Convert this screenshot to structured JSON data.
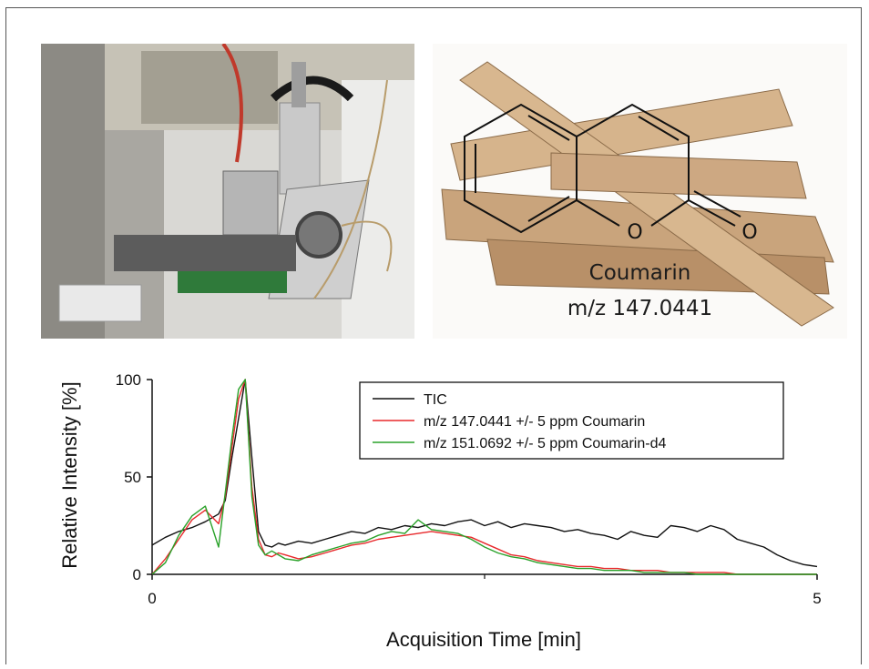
{
  "photos": {
    "left": {
      "icon": "instrument-photo"
    },
    "right": {
      "icon": "cinnamon-sticks-photo",
      "compound_name": "Coumarin",
      "compound_mz": "m/z 147.0441",
      "atom_label": "O"
    }
  },
  "chart_data": {
    "type": "line",
    "xlabel": "Acquisition Time [min]",
    "ylabel": "Relative Intensity [%]",
    "xlim": [
      0,
      5
    ],
    "ylim": [
      0,
      100
    ],
    "x_ticks": [
      "0",
      "5"
    ],
    "y_ticks": [
      "0",
      "50",
      "100"
    ],
    "legend_position": "top-right",
    "legend_box": true,
    "series": [
      {
        "name": "TIC",
        "color": "#111111",
        "x": [
          0.0,
          0.1,
          0.2,
          0.3,
          0.4,
          0.5,
          0.55,
          0.6,
          0.65,
          0.7,
          0.75,
          0.8,
          0.85,
          0.9,
          0.95,
          1.0,
          1.1,
          1.2,
          1.3,
          1.4,
          1.5,
          1.6,
          1.7,
          1.8,
          1.9,
          2.0,
          2.1,
          2.2,
          2.3,
          2.4,
          2.5,
          2.6,
          2.7,
          2.8,
          2.9,
          3.0,
          3.1,
          3.2,
          3.3,
          3.4,
          3.5,
          3.6,
          3.7,
          3.8,
          3.9,
          4.0,
          4.1,
          4.2,
          4.3,
          4.4,
          4.5,
          4.6,
          4.7,
          4.8,
          4.9,
          5.0
        ],
        "y": [
          15,
          19,
          22,
          24,
          27,
          31,
          38,
          60,
          80,
          100,
          60,
          22,
          15,
          14,
          16,
          15,
          17,
          16,
          18,
          20,
          22,
          21,
          24,
          23,
          25,
          24,
          26,
          25,
          27,
          28,
          25,
          27,
          24,
          26,
          25,
          24,
          22,
          23,
          21,
          20,
          18,
          22,
          20,
          19,
          25,
          24,
          22,
          25,
          23,
          18,
          16,
          14,
          10,
          7,
          5,
          4
        ]
      },
      {
        "name": "m/z 147.0441 +/- 5 ppm Coumarin",
        "color": "#e8292c",
        "x": [
          0.0,
          0.1,
          0.2,
          0.3,
          0.4,
          0.5,
          0.55,
          0.6,
          0.65,
          0.7,
          0.75,
          0.8,
          0.85,
          0.9,
          0.95,
          1.0,
          1.1,
          1.2,
          1.3,
          1.4,
          1.5,
          1.6,
          1.7,
          1.8,
          1.9,
          2.0,
          2.1,
          2.2,
          2.3,
          2.4,
          2.5,
          2.6,
          2.7,
          2.8,
          2.9,
          3.0,
          3.1,
          3.2,
          3.3,
          3.4,
          3.5,
          3.6,
          3.7,
          3.8,
          3.9,
          4.0,
          4.1,
          4.2,
          4.3,
          4.4,
          4.5,
          4.6,
          4.7,
          4.8,
          4.9,
          5.0
        ],
        "y": [
          0,
          8,
          18,
          28,
          33,
          26,
          40,
          65,
          90,
          100,
          45,
          18,
          10,
          9,
          11,
          10,
          8,
          9,
          11,
          13,
          15,
          16,
          18,
          19,
          20,
          21,
          22,
          21,
          20,
          19,
          16,
          13,
          10,
          9,
          7,
          6,
          5,
          4,
          4,
          3,
          3,
          2,
          2,
          2,
          1,
          1,
          1,
          1,
          1,
          0,
          0,
          0,
          0,
          0,
          0,
          0
        ]
      },
      {
        "name": "m/z 151.0692 +/- 5 ppm Coumarin-d4",
        "color": "#2aa22a",
        "x": [
          0.0,
          0.1,
          0.2,
          0.3,
          0.4,
          0.5,
          0.55,
          0.6,
          0.65,
          0.7,
          0.75,
          0.8,
          0.85,
          0.9,
          0.95,
          1.0,
          1.1,
          1.2,
          1.3,
          1.4,
          1.5,
          1.6,
          1.7,
          1.8,
          1.9,
          2.0,
          2.1,
          2.2,
          2.3,
          2.4,
          2.5,
          2.6,
          2.7,
          2.8,
          2.9,
          3.0,
          3.1,
          3.2,
          3.3,
          3.4,
          3.5,
          3.6,
          3.7,
          3.8,
          3.9,
          4.0,
          4.1,
          4.2,
          4.3,
          4.4,
          4.5,
          4.6,
          4.7,
          4.8,
          4.9,
          5.0
        ],
        "y": [
          0,
          6,
          20,
          30,
          35,
          14,
          42,
          70,
          95,
          100,
          40,
          15,
          10,
          12,
          10,
          8,
          7,
          10,
          12,
          14,
          16,
          17,
          20,
          22,
          21,
          28,
          23,
          22,
          21,
          18,
          14,
          11,
          9,
          8,
          6,
          5,
          4,
          3,
          3,
          2,
          2,
          2,
          1,
          1,
          1,
          1,
          0,
          0,
          0,
          0,
          0,
          0,
          0,
          0,
          0,
          0
        ]
      }
    ]
  }
}
